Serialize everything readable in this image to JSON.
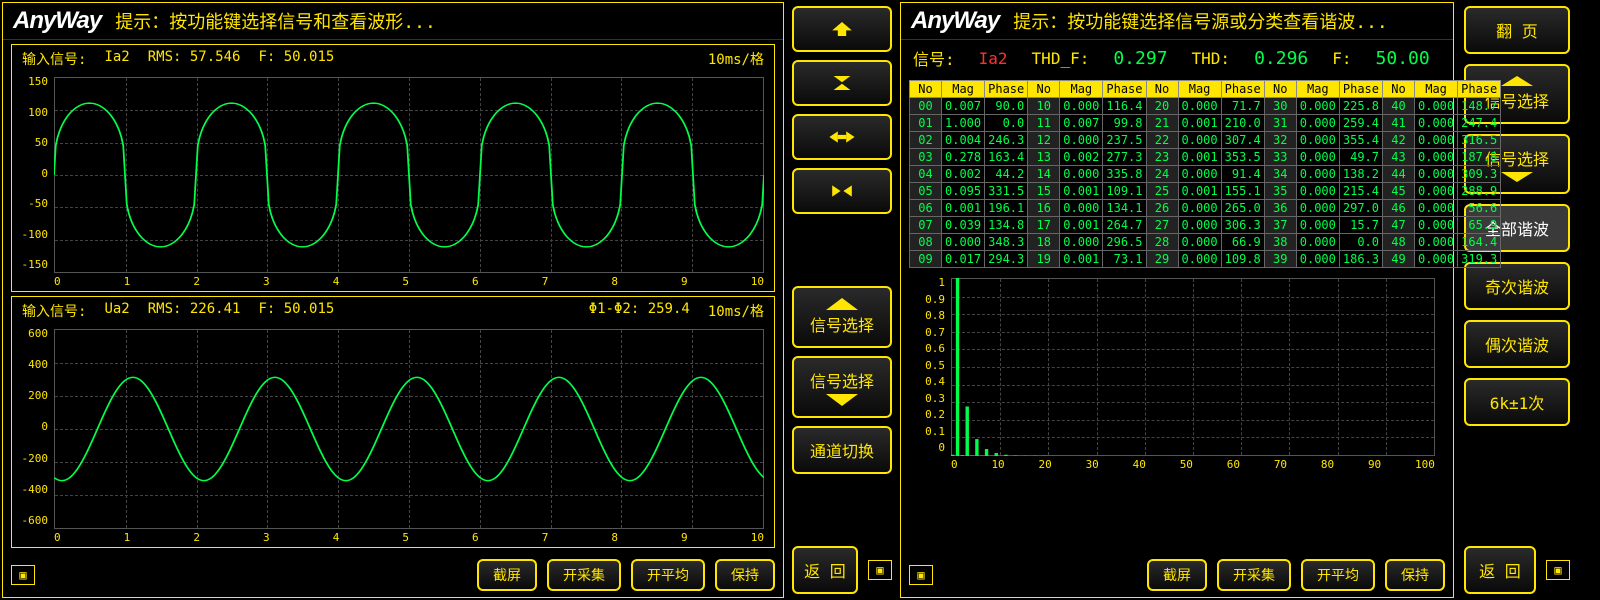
{
  "colors": {
    "accent": "#ffe600",
    "signal": "#00ff4a",
    "bg": "#000000",
    "grid": "#444444",
    "border": "#555555",
    "red": "#ff3030"
  },
  "logo": "AnyWay",
  "left": {
    "hint": "提示：按功能键选择信号和查看波形...",
    "chart1": {
      "label": "输入信号:",
      "signal": "Ia2",
      "rms": "RMS: 57.546",
      "f": "F: 50.015",
      "timediv": "10ms/格",
      "ylim": [
        -150,
        150
      ],
      "ystep": 50,
      "xlim": [
        0,
        10
      ],
      "xstep": 1,
      "wave": {
        "type": "custom",
        "amp": 110,
        "periods": 5,
        "shape": "cusp"
      }
    },
    "chart2": {
      "label": "输入信号:",
      "signal": "Ua2",
      "rms": "RMS: 226.41",
      "f": "F: 50.015",
      "phi": "Φ1-Φ2: 259.4",
      "timediv": "10ms/格",
      "ylim": [
        -600,
        600
      ],
      "ystep": 200,
      "xlim": [
        0,
        10
      ],
      "xstep": 1,
      "wave": {
        "type": "sine",
        "amp": 310,
        "periods": 5,
        "phase": 250
      }
    },
    "buttons": {
      "screenshot": "截屏",
      "start": "开采集",
      "avg": "开平均",
      "hold": "保持"
    }
  },
  "mid": {
    "btns": [
      "up",
      "collapse-v",
      "expand-h",
      "collapse-h"
    ],
    "sig1": "信号选择",
    "sig2": "信号选择",
    "chswitch": "通道切换",
    "return": "返    回"
  },
  "right": {
    "hint": "提示：按功能键选择信号源或分类查看谐波...",
    "stats": {
      "siglbl": "信号:",
      "sig": "Ia2",
      "thdf_lbl": "THD_F:",
      "thdf": "0.297",
      "thd_lbl": "THD:",
      "thd": "0.296",
      "f_lbl": "F:",
      "f": "50.00"
    },
    "headers": [
      "No",
      "Mag",
      "Phase"
    ],
    "rows": [
      [
        "00",
        "0.007",
        "90.0",
        "10",
        "0.000",
        "116.4",
        "20",
        "0.000",
        "71.7",
        "30",
        "0.000",
        "225.8",
        "40",
        "0.000",
        "148.7"
      ],
      [
        "01",
        "1.000",
        "0.0",
        "11",
        "0.007",
        "99.8",
        "21",
        "0.001",
        "210.0",
        "31",
        "0.000",
        "259.4",
        "41",
        "0.000",
        "247.4"
      ],
      [
        "02",
        "0.004",
        "246.3",
        "12",
        "0.000",
        "237.5",
        "22",
        "0.000",
        "307.4",
        "32",
        "0.000",
        "355.4",
        "42",
        "0.000",
        "316.5"
      ],
      [
        "03",
        "0.278",
        "163.4",
        "13",
        "0.002",
        "277.3",
        "23",
        "0.001",
        "353.5",
        "33",
        "0.000",
        "49.7",
        "43",
        "0.000",
        "187.8"
      ],
      [
        "04",
        "0.002",
        "44.2",
        "14",
        "0.000",
        "335.8",
        "24",
        "0.000",
        "91.4",
        "34",
        "0.000",
        "138.2",
        "44",
        "0.000",
        "309.3"
      ],
      [
        "05",
        "0.095",
        "331.5",
        "15",
        "0.001",
        "109.1",
        "25",
        "0.001",
        "155.1",
        "35",
        "0.000",
        "215.4",
        "45",
        "0.000",
        "288.9"
      ],
      [
        "06",
        "0.001",
        "196.1",
        "16",
        "0.000",
        "134.1",
        "26",
        "0.000",
        "265.0",
        "36",
        "0.000",
        "297.0",
        "46",
        "0.000",
        "56.6"
      ],
      [
        "07",
        "0.039",
        "134.8",
        "17",
        "0.001",
        "264.7",
        "27",
        "0.000",
        "306.3",
        "37",
        "0.000",
        "15.7",
        "47",
        "0.000",
        "65.9"
      ],
      [
        "08",
        "0.000",
        "348.3",
        "18",
        "0.000",
        "296.5",
        "28",
        "0.000",
        "66.9",
        "38",
        "0.000",
        "0.0",
        "48",
        "0.000",
        "164.4"
      ],
      [
        "09",
        "0.017",
        "294.3",
        "19",
        "0.001",
        "73.1",
        "29",
        "0.000",
        "109.8",
        "39",
        "0.000",
        "186.3",
        "49",
        "0.000",
        "319.3"
      ]
    ],
    "bar": {
      "ylim": [
        0,
        1
      ],
      "ystep": 0.1,
      "xlim": [
        0,
        100
      ],
      "xstep": 10,
      "values": [
        0.007,
        1.0,
        0.004,
        0.278,
        0.002,
        0.095,
        0.001,
        0.039,
        0.0,
        0.017,
        0.0,
        0.007,
        0.0,
        0.002,
        0.0,
        0.001,
        0.0,
        0.001,
        0.0,
        0.001
      ]
    },
    "buttons": {
      "screenshot": "截屏",
      "start": "开采集",
      "avg": "开平均",
      "hold": "保持"
    }
  },
  "rbtns": {
    "page": "翻    页",
    "sig1": "信号选择",
    "sig2": "信号选择",
    "all": "全部谐波",
    "odd": "奇次谐波",
    "even": "偶次谐波",
    "k6": "6k±1次",
    "return": "返    回"
  }
}
